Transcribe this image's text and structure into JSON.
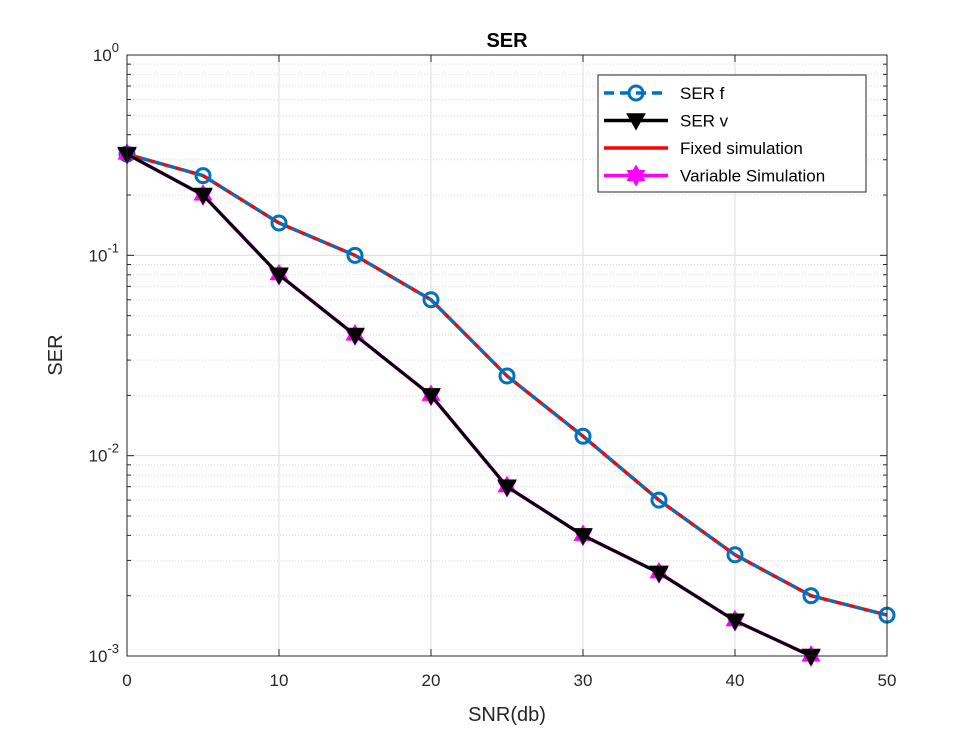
{
  "chart_data": {
    "type": "line",
    "title": "SER",
    "xlabel": "SNR(db)",
    "ylabel": "SER",
    "xlim": [
      0,
      50
    ],
    "ylim": [
      0.001,
      1
    ],
    "yscale": "log",
    "grid": true,
    "minor_grid": true,
    "legend_position": "top-right",
    "x_ticks": [
      "0",
      "10",
      "20",
      "30",
      "40",
      "50"
    ],
    "y_ticks": [
      {
        "base": "10",
        "exp": "-3"
      },
      {
        "base": "10",
        "exp": "-2"
      },
      {
        "base": "10",
        "exp": "-1"
      },
      {
        "base": "10",
        "exp": "0"
      }
    ],
    "series": [
      {
        "name": "SER f",
        "color": "#0072BD",
        "line_style": "dashed",
        "marker": "circle",
        "x": [
          0,
          5,
          10,
          15,
          20,
          25,
          30,
          35,
          40,
          45,
          50
        ],
        "values": [
          0.32,
          0.25,
          0.145,
          0.1,
          0.06,
          0.025,
          0.0125,
          0.006,
          0.0032,
          0.002,
          0.0016
        ]
      },
      {
        "name": "SER v",
        "color": "#000000",
        "line_style": "solid",
        "marker": "triangle-down",
        "x": [
          0,
          5,
          10,
          15,
          20,
          25,
          30,
          35,
          40,
          45
        ],
        "values": [
          0.32,
          0.2,
          0.08,
          0.04,
          0.02,
          0.007,
          0.004,
          0.0026,
          0.0015,
          0.001
        ]
      },
      {
        "name": "Fixed simulation",
        "color": "#FF0000",
        "line_style": "solid",
        "marker": "none",
        "x": [
          0,
          5,
          10,
          15,
          20,
          25,
          30,
          35,
          40,
          45,
          50
        ],
        "values": [
          0.32,
          0.25,
          0.145,
          0.1,
          0.06,
          0.025,
          0.0125,
          0.006,
          0.0032,
          0.002,
          0.0016
        ]
      },
      {
        "name": "Variable Simulation",
        "color": "#FF00FF",
        "line_style": "solid",
        "marker": "hexagram",
        "x": [
          0,
          5,
          10,
          15,
          20,
          25,
          30,
          35,
          40,
          45
        ],
        "values": [
          0.32,
          0.2,
          0.08,
          0.04,
          0.02,
          0.007,
          0.004,
          0.0026,
          0.0015,
          0.001
        ]
      }
    ]
  }
}
